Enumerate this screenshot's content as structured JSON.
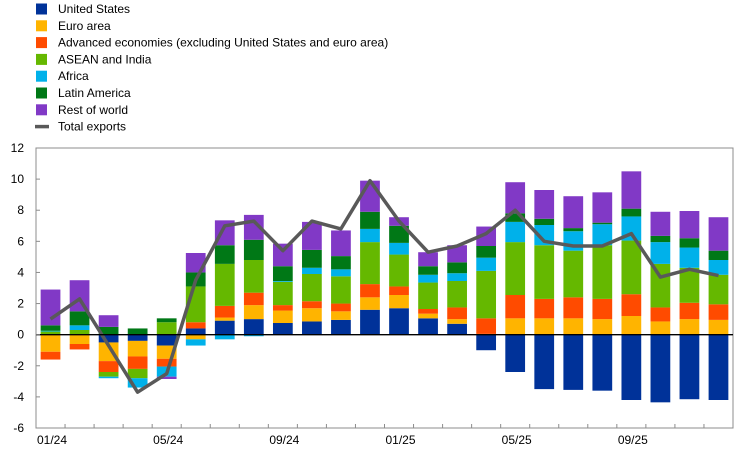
{
  "chart_data": {
    "type": "bar",
    "stacked": true,
    "title": "",
    "xlabel": "",
    "ylabel": "",
    "ylim": [
      -6,
      12
    ],
    "y_ticks": [
      12,
      10,
      8,
      6,
      4,
      2,
      0,
      -2,
      -4,
      -6
    ],
    "grid": false,
    "legend_position": "top-left",
    "x_tick_labels": [
      {
        "label": "01/24",
        "index": 0
      },
      {
        "label": "05/24",
        "index": 4
      },
      {
        "label": "09/24",
        "index": 8
      },
      {
        "label": "01/25",
        "index": 12
      },
      {
        "label": "05/25",
        "index": 16
      },
      {
        "label": "09/25",
        "index": 20
      }
    ],
    "categories": [
      "01/24",
      "02/24",
      "03/24",
      "04/24",
      "05/24",
      "06/24",
      "07/24",
      "08/24",
      "09/24",
      "10/24",
      "11/24",
      "12/24",
      "01/25",
      "02/25",
      "03/25",
      "04/25",
      "05/25",
      "06/25",
      "07/25",
      "08/25",
      "09/25",
      "10/25",
      "11/25",
      "12/25"
    ],
    "series": [
      {
        "name": "United States",
        "color": "#003299",
        "values": [
          0,
          0,
          -0.5,
          -0.4,
          -0.7,
          0.4,
          0.9,
          1.0,
          0.75,
          0.85,
          0.95,
          1.6,
          1.7,
          1.05,
          0.7,
          -1.0,
          -2.4,
          -3.5,
          -3.55,
          -3.6,
          -4.2,
          -4.35,
          -4.15,
          -4.2
        ]
      },
      {
        "name": "Euro area",
        "color": "#ffb400",
        "values": [
          -1.1,
          -0.6,
          -1.2,
          -1.0,
          -0.85,
          -0.3,
          0.2,
          0.9,
          0.8,
          0.85,
          0.55,
          0.8,
          0.85,
          0.3,
          0.3,
          0.05,
          1.05,
          1.05,
          1.05,
          1.0,
          1.2,
          0.85,
          1.0,
          0.95
        ]
      },
      {
        "name": "Advanced economies (excluding United States and euro area)",
        "color": "#ff4b00",
        "values": [
          -0.5,
          -0.35,
          -0.7,
          -0.8,
          -0.5,
          0.4,
          0.75,
          0.8,
          0.35,
          0.45,
          0.5,
          0.85,
          0.55,
          0.3,
          0.75,
          1.0,
          1.5,
          1.25,
          1.35,
          1.3,
          1.4,
          0.9,
          1.05,
          1.0
        ]
      },
      {
        "name": "ASEAN and India",
        "color": "#65b800",
        "values": [
          0.2,
          0.3,
          -0.3,
          -0.6,
          0.8,
          2.3,
          2.7,
          2.1,
          1.5,
          1.75,
          1.75,
          2.7,
          2.05,
          1.7,
          1.7,
          3.05,
          3.4,
          3.45,
          3.0,
          3.45,
          3.45,
          2.8,
          2.25,
          1.9
        ]
      },
      {
        "name": "Africa",
        "color": "#00b1ea",
        "values": [
          0.05,
          0.3,
          -0.1,
          -0.6,
          -0.65,
          -0.4,
          -0.3,
          -0.1,
          0.05,
          0.4,
          0.45,
          0.85,
          0.75,
          0.5,
          0.5,
          0.85,
          1.3,
          1.3,
          1.25,
          1.35,
          1.55,
          1.4,
          1.3,
          0.95
        ]
      },
      {
        "name": "Latin America",
        "color": "#007816",
        "values": [
          0.35,
          0.9,
          0.5,
          0.4,
          0.25,
          0.9,
          1.2,
          1.3,
          0.95,
          1.15,
          0.85,
          1.1,
          1.1,
          0.55,
          0.7,
          0.75,
          0.55,
          0.4,
          0.2,
          0.1,
          0.5,
          0.4,
          0.6,
          0.6
        ]
      },
      {
        "name": "Rest of world",
        "color": "#8139c6",
        "values": [
          2.3,
          2.0,
          0.75,
          0,
          -0.15,
          1.25,
          1.6,
          1.6,
          1.45,
          1.8,
          1.65,
          2.0,
          0.55,
          0.9,
          1.1,
          1.25,
          2.0,
          1.85,
          2.05,
          1.95,
          2.4,
          1.55,
          1.75,
          2.15
        ]
      }
    ],
    "line_series": {
      "name": "Total exports",
      "color": "#595959",
      "values": [
        1.0,
        2.3,
        -0.7,
        -3.7,
        -2.5,
        3.5,
        7.0,
        7.3,
        5.4,
        7.3,
        6.8,
        9.9,
        7.3,
        5.3,
        5.7,
        6.5,
        8.0,
        6.0,
        5.7,
        5.7,
        6.5,
        3.7,
        4.2,
        3.8
      ]
    }
  }
}
